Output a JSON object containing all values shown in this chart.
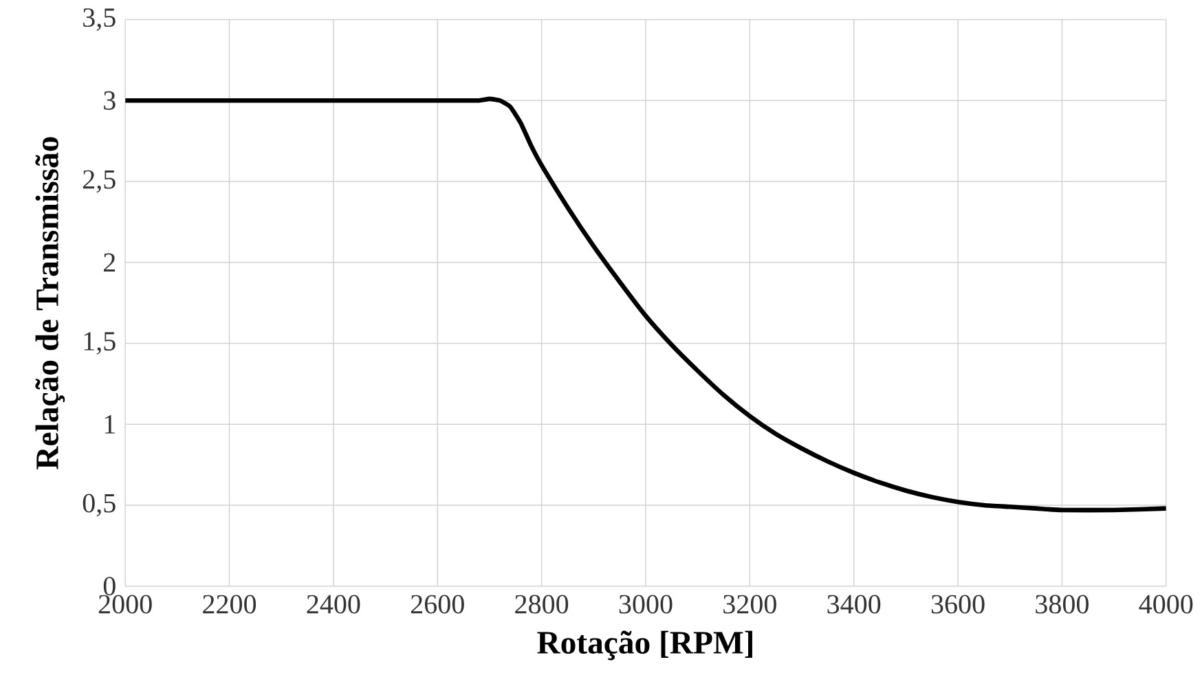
{
  "chart_data": {
    "type": "line",
    "xlabel": "Rotação [RPM]",
    "ylabel": "Relação de Transmissão",
    "x": [
      2000,
      2200,
      2400,
      2600,
      2650,
      2680,
      2700,
      2720,
      2740,
      2760,
      2780,
      2800,
      2850,
      2900,
      2950,
      3000,
      3050,
      3100,
      3150,
      3200,
      3250,
      3300,
      3350,
      3400,
      3450,
      3500,
      3550,
      3600,
      3650,
      3700,
      3750,
      3800,
      3900,
      4000
    ],
    "series": [
      {
        "color": "#000000",
        "values": [
          3.0,
          3.0,
          3.0,
          3.0,
          3.0,
          3.0,
          3.01,
          3.0,
          2.96,
          2.86,
          2.72,
          2.6,
          2.34,
          2.1,
          1.88,
          1.67,
          1.49,
          1.33,
          1.18,
          1.05,
          0.94,
          0.85,
          0.77,
          0.7,
          0.64,
          0.59,
          0.55,
          0.52,
          0.5,
          0.49,
          0.48,
          0.47,
          0.47,
          0.48
        ]
      }
    ],
    "xlim": [
      2000,
      4000
    ],
    "xticks": [
      2000,
      2200,
      2400,
      2600,
      2800,
      3000,
      3200,
      3400,
      3600,
      3800,
      4000
    ],
    "ylim": [
      0,
      3.5
    ],
    "yticks": [
      0,
      {
        "value": 0.5,
        "label": "0,5"
      },
      1,
      {
        "value": 1.5,
        "label": "1,5"
      },
      2,
      {
        "value": 2.5,
        "label": "2,5"
      },
      3,
      {
        "value": 3.5,
        "label": "3,5"
      }
    ],
    "grid": true,
    "marker": "none",
    "line_style": "solid"
  }
}
